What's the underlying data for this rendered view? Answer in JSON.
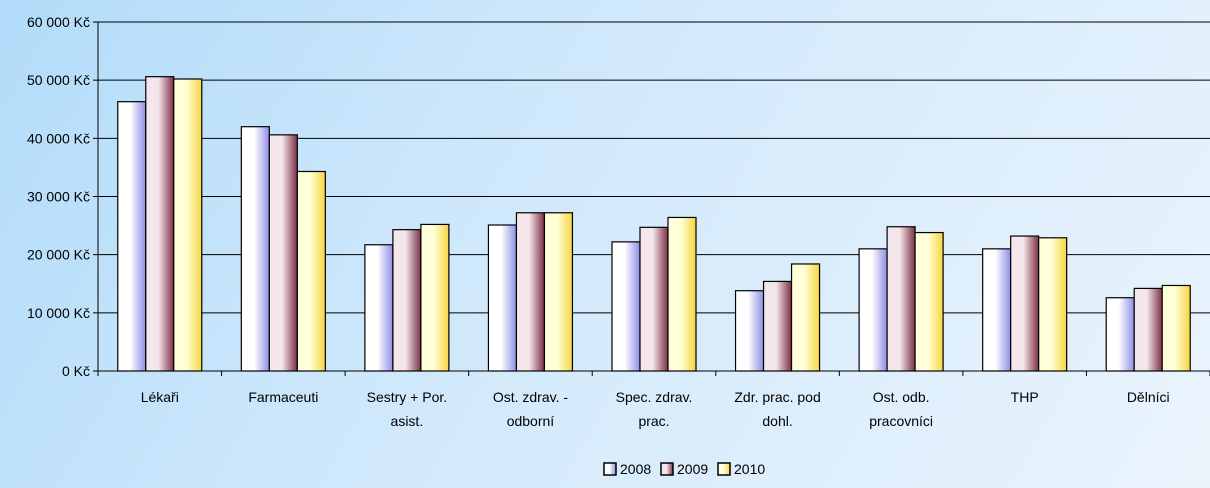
{
  "chart_data": {
    "type": "bar",
    "categories": [
      [
        "Lékaři"
      ],
      [
        "Farmaceuti"
      ],
      [
        "Sestry + Por.",
        "asist."
      ],
      [
        "Ost. zdrav. -",
        "odborní"
      ],
      [
        "Spec. zdrav.",
        "prac."
      ],
      [
        "Zdr. prac. pod",
        "dohl."
      ],
      [
        "Ost. odb.",
        "pracovníci"
      ],
      [
        "THP"
      ],
      [
        "Dělníci"
      ]
    ],
    "series": [
      {
        "name": "2008",
        "values": [
          46300,
          42000,
          21700,
          25100,
          22200,
          13800,
          21000,
          21000,
          12600
        ]
      },
      {
        "name": "2009",
        "values": [
          50600,
          40600,
          24300,
          27200,
          24700,
          15400,
          24800,
          23200,
          14200
        ]
      },
      {
        "name": "2010",
        "values": [
          50200,
          34300,
          25200,
          27200,
          26400,
          18400,
          23800,
          22900,
          14700
        ]
      }
    ],
    "y_ticks": [
      "0 Kč",
      "10 000 Kč",
      "20 000 Kč",
      "30 000 Kč",
      "40 000 Kč",
      "50 000 Kč",
      "60 000 Kč"
    ],
    "ylim": [
      0,
      60000
    ],
    "title": "",
    "xlabel": "",
    "ylabel": "",
    "grid": true,
    "legend_position": "bottom",
    "colors": {
      "2008": {
        "light": "#ffffff",
        "dark": "#8e8ee6"
      },
      "2009": {
        "light": "#f4e6ea",
        "dark": "#7c2f45"
      },
      "2010": {
        "light": "#ffffd8",
        "dark": "#f7d640"
      },
      "gridline": "#000000",
      "bar_outline": "#000000"
    }
  }
}
